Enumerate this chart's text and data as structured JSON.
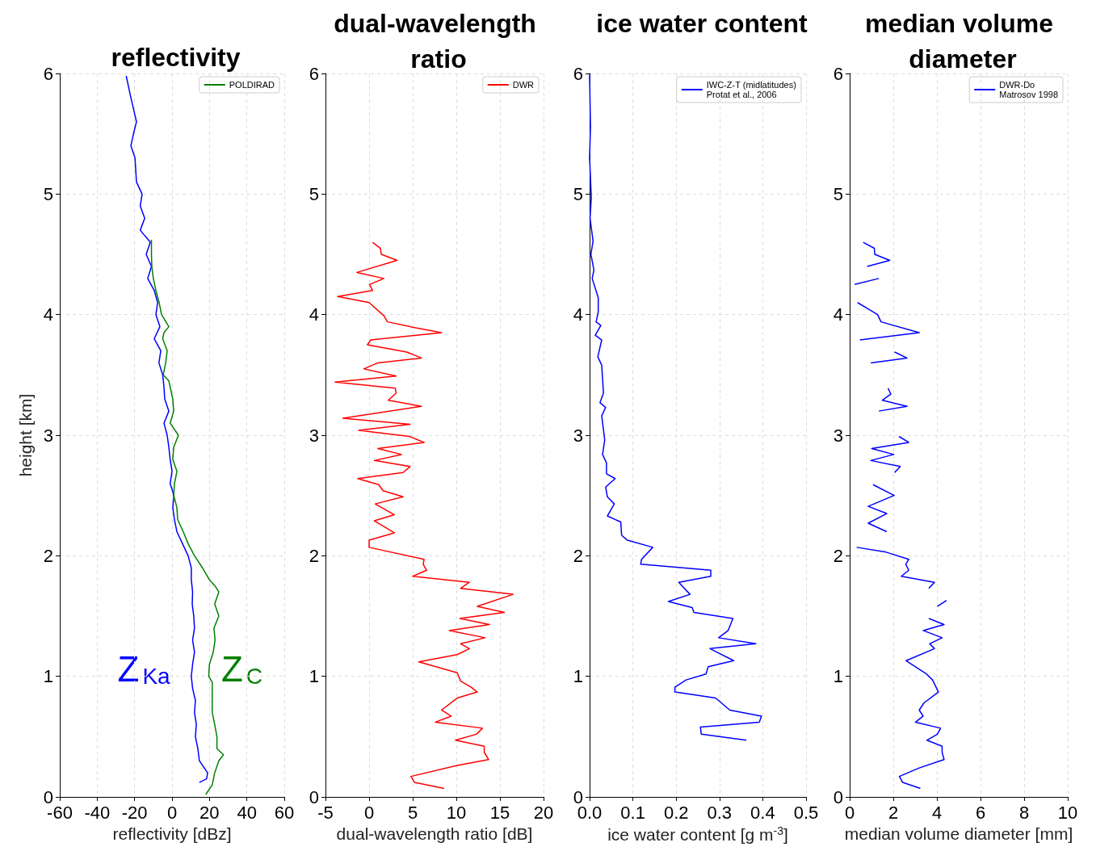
{
  "chart_data": [
    {
      "type": "line",
      "title": "reflectivity",
      "xlabel": "reflectivity [dBz]",
      "ylabel": "height [km]",
      "xlim": [
        -60,
        60
      ],
      "xticks": [
        -60,
        -40,
        -20,
        0,
        20,
        40,
        60
      ],
      "ylim": [
        0,
        6
      ],
      "yticks": [
        0,
        1,
        2,
        3,
        4,
        5,
        6
      ],
      "grid": true,
      "legend": "top right",
      "series": [
        {
          "color": "#0000ff",
          "x": [
            -24.5,
            -22,
            -19,
            -20.6,
            -22,
            -19.8,
            -19,
            -16,
            -17,
            -14.6,
            -17,
            -11.6,
            -13.8,
            -11,
            -13,
            -9.5,
            -7.7,
            -8.6,
            -6.5,
            -9.5,
            -6,
            -7,
            -5,
            -4.3,
            -3.9,
            -1.7,
            -4.3,
            -2.6,
            -1.7,
            -1,
            0,
            -1,
            1,
            0.4,
            1.3,
            2.6,
            5.6,
            8.6,
            10.3,
            10.3,
            11,
            10.8,
            11.6,
            12,
            11,
            12,
            11,
            10.3,
            11,
            12.5,
            12,
            13,
            12.5,
            13.8,
            14.6,
            19,
            18.5,
            14.6
          ],
          "values": [
            5.98,
            5.8,
            5.6,
            5.5,
            5.4,
            5.3,
            5.1,
            5.0,
            4.9,
            4.8,
            4.7,
            4.6,
            4.5,
            4.4,
            4.3,
            4.2,
            4.1,
            4.0,
            3.9,
            3.8,
            3.7,
            3.6,
            3.5,
            3.4,
            3.3,
            3.2,
            3.1,
            3.0,
            2.9,
            2.8,
            2.7,
            2.6,
            2.5,
            2.4,
            2.3,
            2.2,
            2.1,
            2.0,
            1.9,
            1.8,
            1.7,
            1.6,
            1.5,
            1.4,
            1.3,
            1.2,
            1.1,
            1.0,
            0.9,
            0.8,
            0.7,
            0.6,
            0.5,
            0.4,
            0.3,
            0.2,
            0.15,
            0.12
          ]
        },
        {
          "name": "POLDIRAD",
          "color": "#008000",
          "x": [
            -11,
            -11,
            -10.8,
            -10,
            -8.6,
            -6.9,
            -5.6,
            -1.7,
            -4.3,
            -5,
            -2.6,
            -3.4,
            -4.7,
            -1.7,
            0.4,
            0.9,
            -1,
            3.4,
            0.9,
            0.4,
            2.6,
            1.3,
            0.9,
            2.6,
            3,
            6,
            8.6,
            12,
            16.3,
            20,
            23,
            25,
            22.8,
            25,
            22.4,
            23,
            22,
            20,
            19.6,
            21.5,
            21.5,
            21.5,
            22.8,
            24,
            24,
            27.5,
            25,
            22.8,
            21.5,
            18
          ],
          "values": [
            4.62,
            4.5,
            4.4,
            4.3,
            4.2,
            4.1,
            4.0,
            3.9,
            3.85,
            3.8,
            3.7,
            3.6,
            3.5,
            3.45,
            3.3,
            3.2,
            3.1,
            3.0,
            2.9,
            2.8,
            2.7,
            2.6,
            2.5,
            2.4,
            2.3,
            2.2,
            2.1,
            2.0,
            1.9,
            1.8,
            1.75,
            1.7,
            1.6,
            1.5,
            1.4,
            1.3,
            1.2,
            1.1,
            1.0,
            0.95,
            0.85,
            0.7,
            0.6,
            0.5,
            0.4,
            0.35,
            0.3,
            0.2,
            0.1,
            0.02
          ]
        }
      ],
      "annotations": [
        "Z$_{Ka}$",
        "Z$_{C}$"
      ]
    },
    {
      "type": "line",
      "title": "dual-wavelength ratio",
      "xlabel": "dual-wavelength ratio [dB]",
      "xlim": [
        -5,
        20
      ],
      "xticks": [
        -5,
        0,
        5,
        10,
        15,
        20
      ],
      "ylim": [
        0,
        6
      ],
      "yticks": [
        0,
        1,
        2,
        3,
        4,
        5,
        6
      ],
      "grid": true,
      "legend": "top right",
      "series": [
        {
          "name": "DWR",
          "color": "#ff0000",
          "x": [
            0.4,
            1.3,
            1.4,
            3.2,
            -1.4,
            1.7,
            0.05,
            0.4,
            -3.6,
            0,
            1.7,
            2.1,
            4.7,
            8.3,
            0.2,
            -0.2,
            4.3,
            6,
            1,
            -0.6,
            3.1,
            -3.9,
            3,
            3.1,
            2.2,
            6,
            -3,
            4.7,
            -1.2,
            4.6,
            6.3,
            1,
            3.7,
            0.6,
            4.7,
            3.9,
            -1.3,
            1.1,
            1.6,
            3.9,
            0.7,
            2.9,
            0.6,
            2.9,
            0,
            0,
            6.3,
            6.2,
            6.6,
            5,
            11.5,
            10.5,
            16.5,
            12.4,
            15.5,
            10.4,
            13.8,
            9.2,
            13.3,
            10.5,
            11.5,
            10.1,
            5.7,
            10.1,
            10.5,
            11.7,
            12.4,
            10.1,
            8.3,
            9.4,
            7.6,
            13,
            12.3,
            9.9,
            13.2,
            13.2,
            13.7,
            10,
            4.8,
            5.2,
            8.6
          ],
          "values": [
            4.6,
            4.55,
            4.5,
            4.45,
            4.35,
            4.3,
            4.25,
            4.2,
            4.15,
            4.1,
            3.99,
            3.94,
            3.9,
            3.85,
            3.79,
            3.75,
            3.69,
            3.64,
            3.6,
            3.55,
            3.49,
            3.44,
            3.39,
            3.35,
            3.29,
            3.24,
            3.14,
            3.09,
            3.04,
            2.99,
            2.94,
            2.89,
            2.84,
            2.79,
            2.74,
            2.69,
            2.64,
            2.59,
            2.54,
            2.49,
            2.43,
            2.34,
            2.29,
            2.19,
            2.13,
            2.07,
            1.97,
            1.93,
            1.88,
            1.83,
            1.78,
            1.73,
            1.68,
            1.58,
            1.53,
            1.48,
            1.43,
            1.38,
            1.32,
            1.27,
            1.23,
            1.18,
            1.12,
            1.03,
            0.96,
            0.91,
            0.87,
            0.82,
            0.72,
            0.67,
            0.62,
            0.57,
            0.52,
            0.47,
            0.42,
            0.37,
            0.31,
            0.26,
            0.17,
            0.12,
            0.07
          ]
        }
      ]
    },
    {
      "type": "line",
      "title": "ice water content",
      "xlabel": "ice water content [g m$^{-3}$]",
      "xlim": [
        0,
        0.5
      ],
      "xticks": [
        {
          "value": 0,
          "label": "0.0"
        },
        0.1,
        0.2,
        0.3,
        0.4,
        0.5
      ],
      "ylim": [
        0,
        6
      ],
      "yticks": [
        0,
        1,
        2,
        3,
        4,
        5,
        6
      ],
      "grid": true,
      "legend": "top right",
      "series": [
        {
          "name": "IWC-Z-T (midlatitudes)\nProtat et al., 2006",
          "color": "#0000ff",
          "x": [
            0,
            0.002,
            0,
            0.004,
            0.001,
            0.008,
            0.003,
            0.01,
            0.006,
            0.02,
            0.02,
            0.015,
            0.026,
            0.013,
            0.028,
            0.019,
            0.028,
            0.032,
            0.024,
            0.037,
            0.028,
            0.035,
            0.03,
            0.039,
            0.039,
            0.059,
            0.037,
            0.041,
            0.057,
            0.041,
            0.072,
            0.074,
            0.087,
            0.146,
            0.12,
            0.118,
            0.28,
            0.28,
            0.206,
            0.232,
            0.182,
            0.237,
            0.241,
            0.331,
            0.32,
            0.298,
            0.384,
            0.278,
            0.333,
            0.274,
            0.269,
            0.223,
            0.197,
            0.197,
            0.291,
            0.324,
            0.397,
            0.392,
            0.256,
            0.258,
            0.362
          ],
          "values": [
            5.99,
            5.56,
            5.3,
            4.97,
            4.8,
            4.61,
            4.5,
            4.37,
            4.3,
            4.14,
            4.02,
            3.94,
            3.91,
            3.83,
            3.79,
            3.65,
            3.58,
            3.35,
            3.27,
            3.23,
            3.16,
            2.96,
            2.84,
            2.77,
            2.68,
            2.64,
            2.57,
            2.49,
            2.43,
            2.33,
            2.28,
            2.17,
            2.13,
            2.07,
            1.97,
            1.93,
            1.88,
            1.83,
            1.78,
            1.68,
            1.62,
            1.57,
            1.53,
            1.48,
            1.38,
            1.32,
            1.27,
            1.23,
            1.13,
            1.08,
            1.02,
            0.97,
            0.91,
            0.87,
            0.82,
            0.72,
            0.67,
            0.62,
            0.58,
            0.52,
            0.47
          ]
        }
      ]
    },
    {
      "type": "line",
      "title": "median volume diameter",
      "xlabel": "median volume diameter [mm]",
      "xlim": [
        0,
        10
      ],
      "xticks": [
        0,
        2,
        4,
        6,
        8,
        10
      ],
      "ylim": [
        0,
        6
      ],
      "yticks": [
        0,
        1,
        2,
        3,
        4,
        5,
        6
      ],
      "grid": true,
      "legend": "top right",
      "series": [
        {
          "name": "DWR-Do\nMatrosov 1998",
          "color": "#0000ff",
          "x": [
            0.62,
            1.13,
            1.15,
            1.84,
            0.8,
            null,
            1.34,
            0.23,
            null,
            0.36,
            0.91,
            1.28,
            1.44,
            3.19,
            0.47,
            null,
            2.06,
            2.63,
            0.97,
            null,
            1.76,
            1.89,
            1.5,
            2.63,
            1.34,
            null,
            2.26,
            2.71,
            1.01,
            2.02,
            0.97,
            2.32,
            2.06,
            null,
            1.07,
            2.04,
            0.85,
            1.7,
            0.85,
            1.7,
            null,
            0.32,
            1.67,
            2.71,
            2.57,
            2.71,
            2.37,
            3.89,
            3.63,
            null,
            4.44,
            4.02,
            null,
            3.63,
            4.33,
            3.37,
            4.24,
            3.67,
            3.89,
            2.59,
            3.52,
            3.8,
            4.07,
            3.41,
            3.19,
            3.37,
            3.02,
            4.17,
            4.02,
            3.54,
            4.24,
            4.24,
            4.33,
            3.19,
            2.28,
            2.43,
            3.24
          ],
          "values": [
            4.6,
            4.55,
            4.5,
            4.45,
            4.4,
            null,
            4.3,
            4.25,
            null,
            4.1,
            4.04,
            4.0,
            3.94,
            3.85,
            3.79,
            null,
            3.69,
            3.64,
            3.6,
            null,
            3.39,
            3.34,
            3.29,
            3.24,
            3.2,
            null,
            2.99,
            2.94,
            2.89,
            2.84,
            2.79,
            2.74,
            2.69,
            null,
            2.59,
            2.5,
            2.41,
            2.35,
            2.27,
            2.2,
            null,
            2.07,
            2.03,
            1.97,
            1.93,
            1.88,
            1.83,
            1.78,
            1.73,
            null,
            1.63,
            1.58,
            null,
            1.48,
            1.43,
            1.38,
            1.32,
            1.27,
            1.23,
            1.13,
            1.02,
            0.97,
            0.87,
            0.78,
            0.72,
            0.67,
            0.62,
            0.57,
            0.52,
            0.47,
            0.42,
            0.37,
            0.31,
            0.24,
            0.17,
            0.12,
            0.07
          ]
        }
      ]
    }
  ]
}
